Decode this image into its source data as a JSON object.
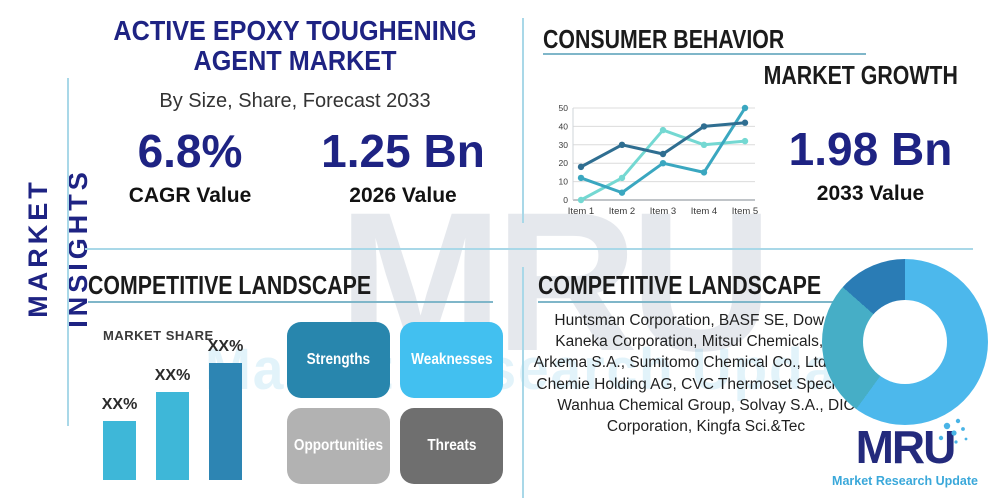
{
  "colors": {
    "brand_navy": "#1e2383",
    "accent_light_blue": "#a9d8e8",
    "underline_blue": "#7fb6c9",
    "header_dark": "#1b1b1b"
  },
  "sidebar": {
    "label": "MARKET INSIGHTS"
  },
  "title_block": {
    "title": "ACTIVE EPOXY TOUGHENING AGENT MARKET",
    "subtitle": "By Size, Share, Forecast 2033"
  },
  "stats": {
    "cagr": {
      "value": "6.8%",
      "label": "CAGR Value"
    },
    "value_2026": {
      "value": "1.25 Bn",
      "label": "2026 Value"
    },
    "value_2033": {
      "value": "1.98 Bn",
      "label": "2033 Value"
    }
  },
  "consumer_behavior": {
    "title": "CONSUMER BEHAVIOR",
    "growth_title": "MARKET GROWTH"
  },
  "competitive_landscape_left": {
    "title": "COMPETITIVE LANDSCAPE",
    "market_share_label": "MARKET SHARE",
    "bars": [
      {
        "label": "XX%",
        "value": 30,
        "color": "#3eb7d8"
      },
      {
        "label": "XX%",
        "value": 45,
        "color": "#3eb7d8"
      },
      {
        "label": "XX%",
        "value": 60,
        "color": "#2d85b3"
      }
    ],
    "swot": [
      {
        "label": "Strengths",
        "color": "#2886ad"
      },
      {
        "label": "Weaknesses",
        "color": "#42c0f0"
      },
      {
        "label": "Opportunities",
        "color": "#b2b2b2"
      },
      {
        "label": "Threats",
        "color": "#6f6f6f"
      }
    ]
  },
  "competitive_landscape_right": {
    "title": "COMPETITIVE LANDSCAPE",
    "companies": "Huntsman Corporation, BASF SE, Dow Inc., Kaneka Corporation, Mitsui Chemicals, Inc., Arkema S.A., Sumitomo Chemical Co., Ltd., EMS-Chemie Holding AG, CVC Thermoset Specialties, Wanhua Chemical Group, Solvay S.A., DIC Corporation, Kingfa Sci.&Tec"
  },
  "logo": {
    "text": "MRU",
    "tagline": "Market Research Update"
  },
  "watermark": {
    "text": "MRU",
    "subtext": "Market Research Update"
  },
  "chart_data": [
    {
      "type": "line",
      "name": "consumer-behavior-line-chart",
      "x": [
        "Item 1",
        "Item 2",
        "Item 3",
        "Item 4",
        "Item 5"
      ],
      "series": [
        {
          "name": "series-dark-blue",
          "color": "#2f6e91",
          "values": [
            18,
            30,
            25,
            40,
            42
          ]
        },
        {
          "name": "series-teal",
          "color": "#3aa7c0",
          "values": [
            12,
            4,
            20,
            15,
            50
          ]
        },
        {
          "name": "series-light-cyan",
          "color": "#74d8d2",
          "values": [
            0,
            12,
            38,
            30,
            32
          ]
        }
      ],
      "ylim": [
        0,
        50
      ],
      "yticks": [
        0,
        10,
        20,
        30,
        40,
        50
      ],
      "grid": true,
      "legend": false
    },
    {
      "type": "bar",
      "name": "market-share-bar-chart",
      "title": "MARKET SHARE",
      "categories": [
        "bar-1",
        "bar-2",
        "bar-3"
      ],
      "values": [
        30,
        45,
        60
      ],
      "value_labels": [
        "XX%",
        "XX%",
        "XX%"
      ],
      "colors": [
        "#3eb7d8",
        "#3eb7d8",
        "#2d85b3"
      ]
    },
    {
      "type": "pie",
      "name": "company-share-donut",
      "donut": true,
      "labels": [
        "share-light-blue",
        "share-teal",
        "share-dark-blue"
      ],
      "values": [
        60,
        26.5,
        13.5
      ],
      "colors": [
        "#4cb8ec",
        "#46aec6",
        "#2a7cb5"
      ]
    }
  ]
}
